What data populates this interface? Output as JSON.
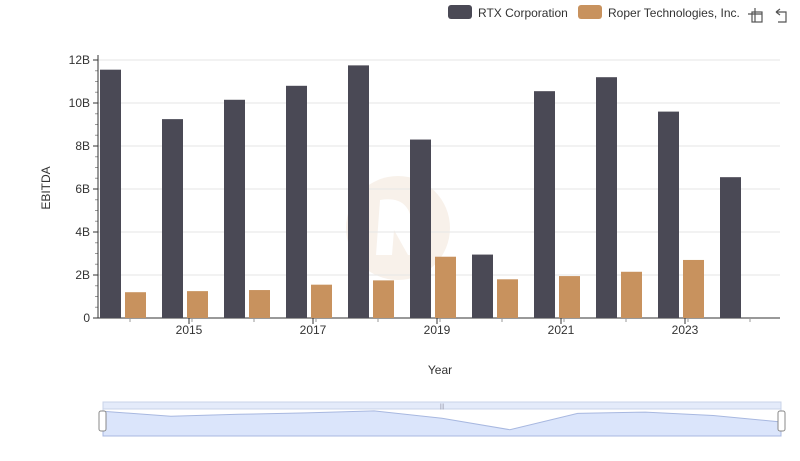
{
  "chart_data": {
    "type": "bar",
    "xlabel": "Year",
    "ylabel": "EBITDA",
    "ylim": [
      0,
      12000000000
    ],
    "y_ticks": [
      {
        "value": 0,
        "label": "0"
      },
      {
        "value": 2000000000,
        "label": "2B"
      },
      {
        "value": 4000000000,
        "label": "4B"
      },
      {
        "value": 6000000000,
        "label": "6B"
      },
      {
        "value": 8000000000,
        "label": "8B"
      },
      {
        "value": 10000000000,
        "label": "10B"
      },
      {
        "value": 12000000000,
        "label": "12B"
      }
    ],
    "x_tick_labels": [
      "2015",
      "2017",
      "2019",
      "2021",
      "2023"
    ],
    "categories": [
      2014,
      2015,
      2016,
      2017,
      2018,
      2019,
      2020,
      2021,
      2022,
      2023,
      2024
    ],
    "legend_position": "top-right",
    "grid": true,
    "series": [
      {
        "name": "RTX Corporation",
        "color": "#4a4955",
        "values": [
          11550000000,
          9250000000,
          10150000000,
          10800000000,
          11750000000,
          8300000000,
          2950000000,
          10550000000,
          11200000000,
          9600000000,
          6550000000
        ]
      },
      {
        "name": "Roper Technologies, Inc.",
        "color": "#c8925e",
        "values": [
          1200000000,
          1250000000,
          1300000000,
          1550000000,
          1750000000,
          2850000000,
          1800000000,
          1950000000,
          2150000000,
          2700000000,
          null
        ]
      }
    ]
  },
  "toolbar": {
    "zoom_icon": "crosshair-zoom-icon",
    "restore_icon": "restore-icon"
  },
  "colors": {
    "grid": "#e6e6e6",
    "axis": "#333333",
    "zoom_fill": "#dbe5fb",
    "zoom_border": "#c9d3e8"
  }
}
